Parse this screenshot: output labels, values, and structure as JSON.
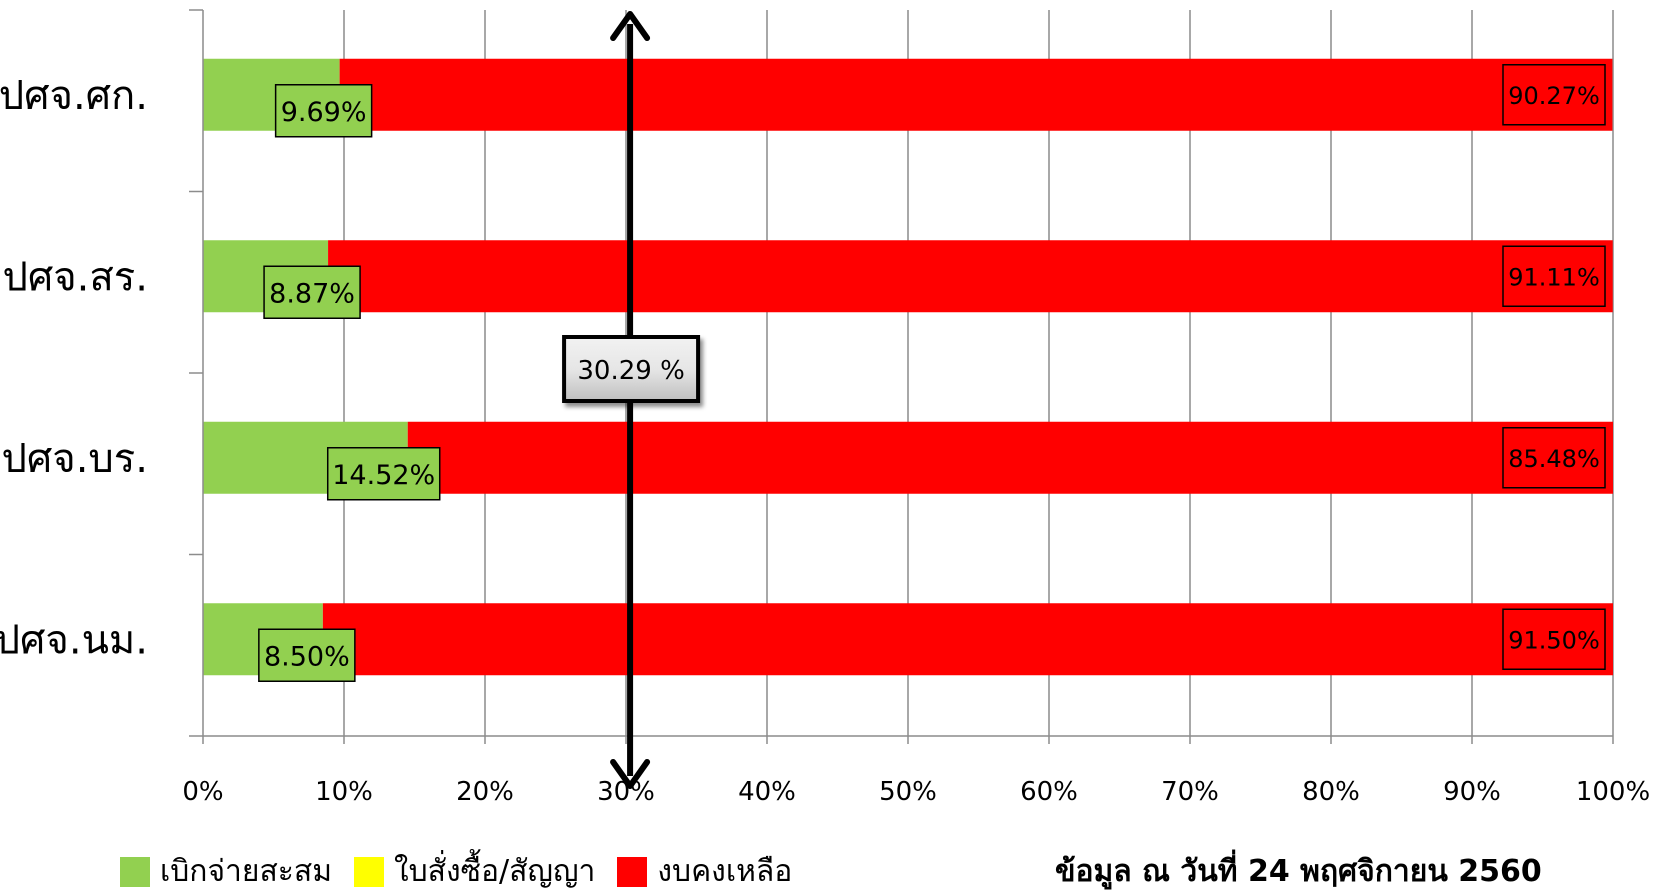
{
  "chart_data": {
    "type": "bar",
    "orientation": "horizontal",
    "stacked": "percent",
    "categories": [
      "ปศจ.ศก.",
      "ปศจ.สร.",
      "ปศจ.บร.",
      "ปศจ.นม."
    ],
    "series": [
      {
        "name": "เบิกจ่ายสะสม",
        "values": [
          9.69,
          8.87,
          14.52,
          8.5
        ],
        "labels": [
          "9.69%",
          "8.87%",
          "14.52%",
          "8.50%"
        ],
        "color": "#92d050"
      },
      {
        "name": "ใบสั่งซื้อ/สัญญา",
        "values": [
          0,
          0,
          0,
          0
        ],
        "color": "#ffff00"
      },
      {
        "name": "งบคงเหลือ",
        "values": [
          90.27,
          91.11,
          85.48,
          91.5
        ],
        "labels": [
          "90.27%",
          "91.11%",
          "85.48%",
          "91.50%"
        ],
        "color": "#ff0000"
      }
    ],
    "x_ticks": [
      "0%",
      "10%",
      "20%",
      "30%",
      "40%",
      "50%",
      "60%",
      "70%",
      "80%",
      "90%",
      "100%"
    ],
    "xlim": [
      0,
      100
    ],
    "grid": true,
    "legend_position": "bottom-left",
    "annotation": {
      "label": "30.29 %",
      "value": 30.29,
      "style": "vertical double arrow"
    }
  },
  "footnote": "ข้อมูล ณ วันที่ 24 พฤศจิกายน 2560"
}
